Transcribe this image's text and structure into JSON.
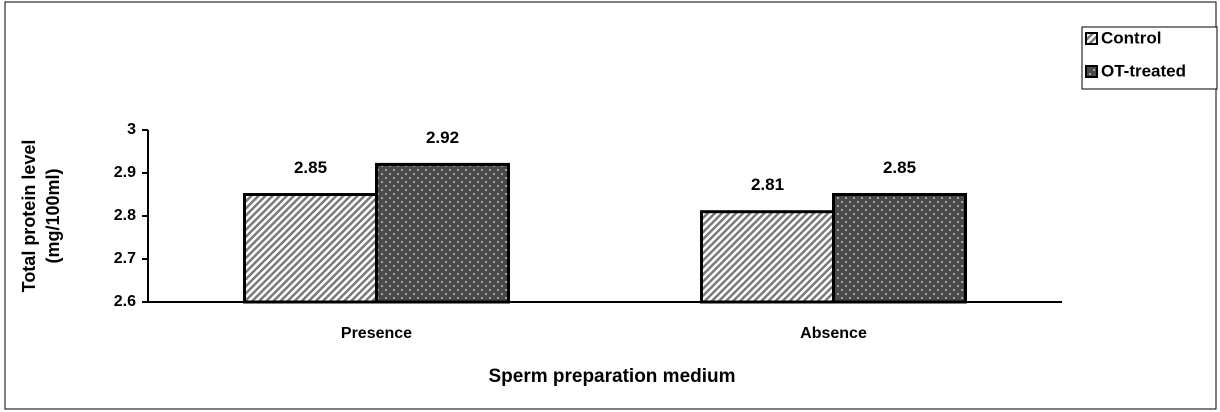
{
  "chart_data": {
    "type": "bar",
    "x_label": "Sperm preparation medium",
    "y_label": [
      "Total protein level",
      "(mg/100ml)"
    ],
    "categories": [
      "Presence",
      "Absence"
    ],
    "series": [
      {
        "name": "Control",
        "color": "#7a7a7a",
        "pattern": "hatch",
        "values": [
          2.85,
          2.81
        ]
      },
      {
        "name": "OT-treated",
        "color": "#4a4a4a",
        "pattern": "dots",
        "values": [
          2.92,
          2.85
        ]
      }
    ],
    "ylim": [
      2.6,
      3
    ],
    "yticks": [
      2.6,
      2.7,
      2.8,
      2.9,
      3
    ],
    "legend": "top-right"
  }
}
